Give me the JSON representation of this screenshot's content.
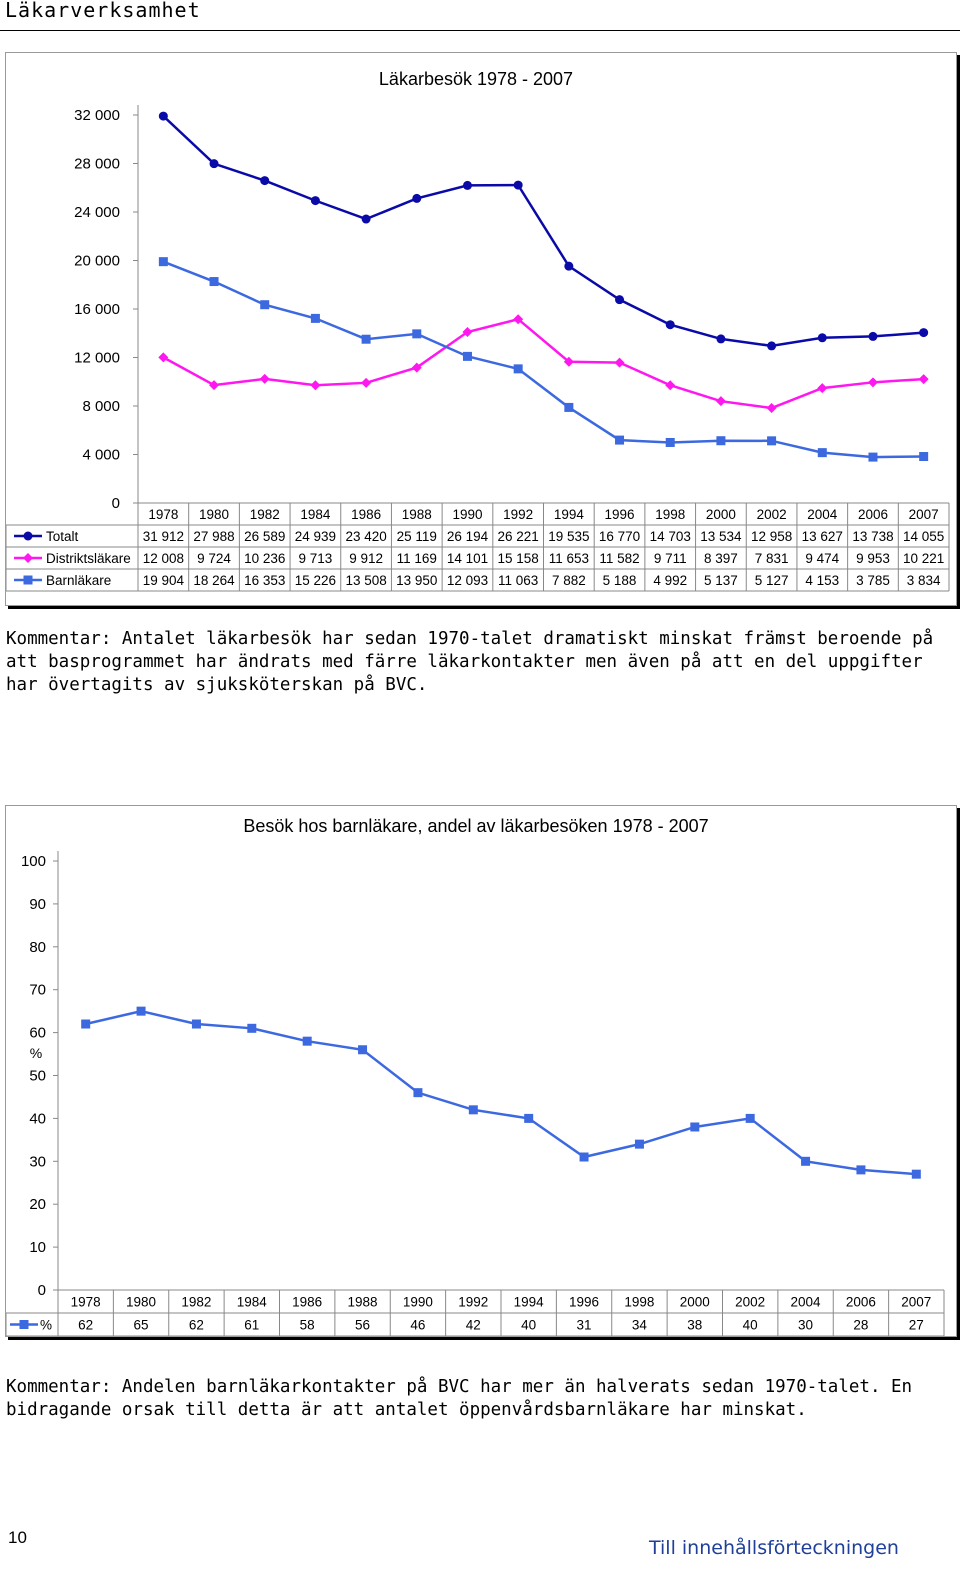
{
  "page": {
    "heading": "Läkarverksamhet",
    "comment1": "Kommentar: Antalet läkarbesök har sedan 1970-talet dramatiskt minskat främst beroende på att basprogrammet har ändrats med färre läkarkontakter men även på att en del uppgifter har övertagits av sjuksköterskan på BVC.",
    "comment2": "Kommentar: Andelen barnläkarkontakter på BVC har mer än halverats sedan 1970-talet. En bidragande orsak till detta är att antalet öppenvårdsbarnläkare har minskat.",
    "page_number": "10",
    "toc_link": "Till innehållsförteckningen"
  },
  "chart_data": [
    {
      "type": "line",
      "title": "Läkarbesök 1978 - 2007",
      "x": [
        "1978",
        "1980",
        "1982",
        "1984",
        "1986",
        "1988",
        "1990",
        "1992",
        "1994",
        "1996",
        "1998",
        "2000",
        "2002",
        "2004",
        "2006",
        "2007"
      ],
      "y_ticks": [
        "0",
        "4 000",
        "8 000",
        "12 000",
        "16 000",
        "20 000",
        "24 000",
        "28 000",
        "32 000"
      ],
      "ylim": [
        0,
        32000
      ],
      "grid": false,
      "legend": "data-table",
      "series": [
        {
          "name": "Totalt",
          "color": "#0a0aa8",
          "marker": "circle",
          "values": [
            31912,
            27988,
            26589,
            24939,
            23420,
            25119,
            26194,
            26221,
            19535,
            16770,
            14703,
            13534,
            12958,
            13627,
            13738,
            14055
          ],
          "labels": [
            "31 912",
            "27 988",
            "26 589",
            "24 939",
            "23 420",
            "25 119",
            "26 194",
            "26 221",
            "19 535",
            "16 770",
            "14 703",
            "13 534",
            "12 958",
            "13 627",
            "13 738",
            "14 055"
          ]
        },
        {
          "name": "Distriktsläkare",
          "color": "#ff17f0",
          "marker": "diamond",
          "values": [
            12008,
            9724,
            10236,
            9713,
            9912,
            11169,
            14101,
            15158,
            11653,
            11582,
            9711,
            8397,
            7831,
            9474,
            9953,
            10221
          ],
          "labels": [
            "12 008",
            "9 724",
            "10 236",
            "9 713",
            "9 912",
            "11 169",
            "14 101",
            "15 158",
            "11 653",
            "11 582",
            "9 711",
            "8 397",
            "7 831",
            "9 474",
            "9 953",
            "10 221"
          ]
        },
        {
          "name": "Barnläkare",
          "color": "#3d69e0",
          "marker": "square",
          "values": [
            19904,
            18264,
            16353,
            15226,
            13508,
            13950,
            12093,
            11063,
            7882,
            5188,
            4992,
            5137,
            5127,
            4153,
            3785,
            3834
          ],
          "labels": [
            "19 904",
            "18 264",
            "16 353",
            "15 226",
            "13 508",
            "13 950",
            "12 093",
            "11 063",
            "7 882",
            "5 188",
            "4 992",
            "5 137",
            "5 127",
            "4 153",
            "3 785",
            "3 834"
          ]
        }
      ]
    },
    {
      "type": "line",
      "title": "Besök hos barnläkare, andel av läkarbesöken 1978 - 2007",
      "ylabel": "%",
      "x": [
        "1978",
        "1980",
        "1982",
        "1984",
        "1986",
        "1988",
        "1990",
        "1992",
        "1994",
        "1996",
        "1998",
        "2000",
        "2002",
        "2004",
        "2006",
        "2007"
      ],
      "y_ticks": [
        "0",
        "10",
        "20",
        "30",
        "40",
        "50",
        "60",
        "70",
        "80",
        "90",
        "100"
      ],
      "ylim": [
        0,
        100
      ],
      "grid": false,
      "legend": "data-table",
      "series": [
        {
          "name": "%",
          "color": "#3d69e0",
          "marker": "square",
          "values": [
            62,
            65,
            62,
            61,
            58,
            56,
            46,
            42,
            40,
            31,
            34,
            38,
            40,
            30,
            28,
            27
          ],
          "labels": [
            "62",
            "65",
            "62",
            "61",
            "58",
            "56",
            "46",
            "42",
            "40",
            "31",
            "34",
            "38",
            "40",
            "30",
            "28",
            "27"
          ]
        }
      ]
    }
  ]
}
